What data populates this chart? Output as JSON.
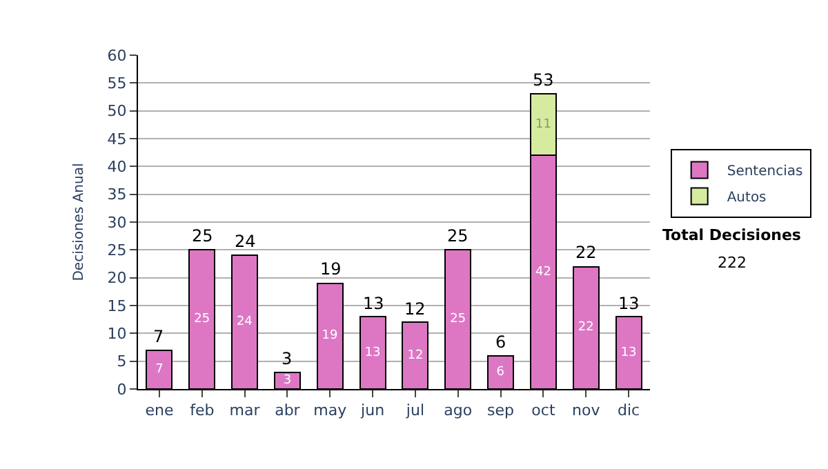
{
  "chart_data": {
    "type": "bar",
    "stacked": true,
    "ylabel": "Decisiones Anual",
    "categories": [
      "ene",
      "feb",
      "mar",
      "abr",
      "may",
      "jun",
      "jul",
      "ago",
      "sep",
      "oct",
      "nov",
      "dic"
    ],
    "series": [
      {
        "name": "Sentencias",
        "color": "#dd77c4",
        "values": [
          7,
          25,
          24,
          3,
          19,
          13,
          12,
          25,
          6,
          42,
          22,
          13
        ],
        "value_labels": [
          "7",
          "25",
          "24",
          "3",
          "19",
          "13",
          "12",
          "25",
          "6",
          "42",
          "22",
          "13"
        ]
      },
      {
        "name": "Autos",
        "color": "#d6eba0",
        "values": [
          null,
          null,
          null,
          null,
          null,
          null,
          null,
          null,
          null,
          11,
          null,
          null
        ],
        "value_labels": [
          null,
          null,
          null,
          null,
          null,
          null,
          null,
          null,
          null,
          "11",
          null,
          null
        ]
      }
    ],
    "totals": [
      "7",
      "25",
      "24",
      "3",
      "19",
      "13",
      "12",
      "25",
      "6",
      "53",
      "22",
      "13"
    ],
    "ylim": [
      0,
      60
    ],
    "yticks": [
      0,
      5,
      10,
      15,
      20,
      25,
      30,
      35,
      40,
      45,
      50,
      55,
      60
    ],
    "grid": "y",
    "legend": "right",
    "annotations": [
      "Total Decisiones",
      "222"
    ]
  }
}
